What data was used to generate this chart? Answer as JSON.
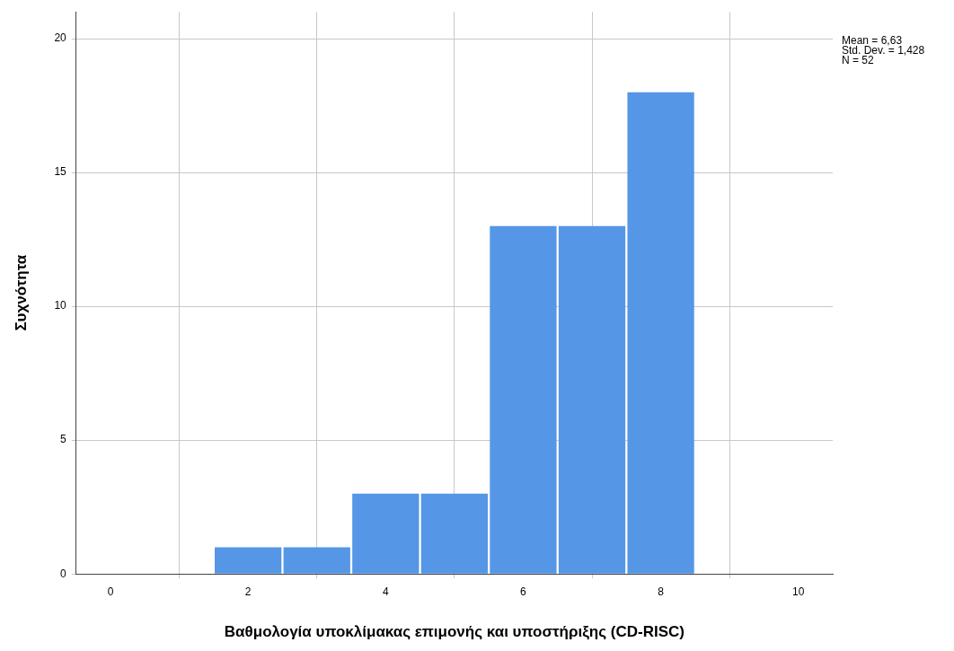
{
  "chart_data": {
    "type": "histogram",
    "xlabel": "Βαθμολογία υποκλίμακας επιμονής και υποστήριξης (CD-RISC)",
    "ylabel": "Συχνότητα",
    "bins": [
      1.5,
      2.5,
      3.5,
      4.5,
      5.5,
      6.5,
      7.5,
      8.5
    ],
    "values": [
      1,
      1,
      3,
      3,
      13,
      13,
      18
    ],
    "color": "#5596e6",
    "xlim": [
      -0.5,
      10.5
    ],
    "xticks": [
      0,
      2,
      4,
      6,
      8,
      10
    ],
    "ylim": [
      0,
      21
    ],
    "yticks": [
      0,
      5,
      10,
      15,
      20
    ],
    "grid": true,
    "annotations": [
      "Mean = 6,63",
      "Std. Dev. = 1,428",
      "N = 52"
    ]
  }
}
